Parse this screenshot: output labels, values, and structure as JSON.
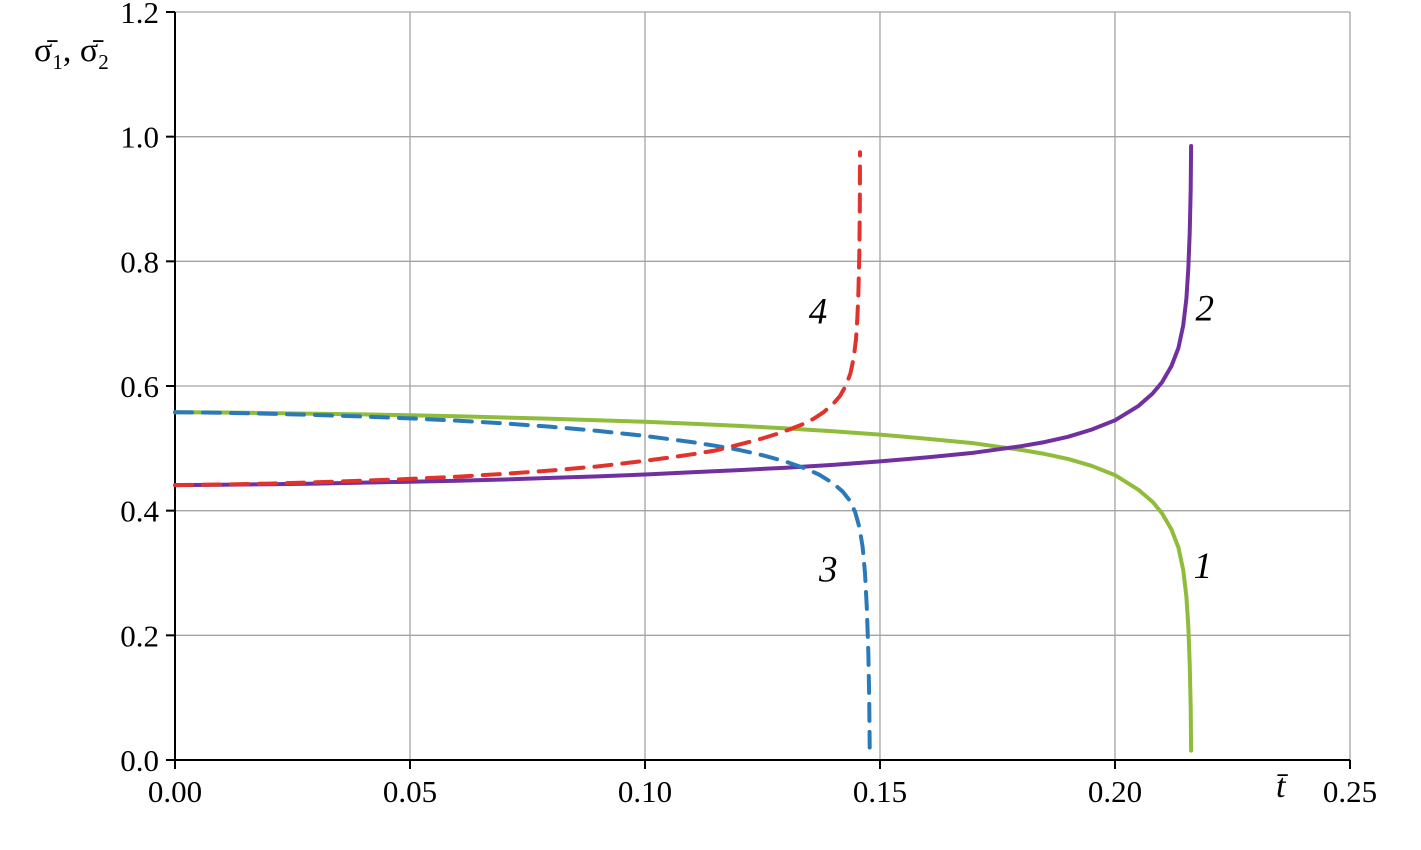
{
  "figure": {
    "background": "#ffffff"
  },
  "chart_data": {
    "type": "line",
    "title": "",
    "xlabel": "t̄",
    "ylabel": "σ̄₁, σ̄₂",
    "ylabel_parts": {
      "s1": "σ̄",
      "sub1": "1",
      "sep": ", ",
      "s2": "σ̄",
      "sub2": "2"
    },
    "xlim": [
      0,
      0.25
    ],
    "ylim": [
      0,
      1.2
    ],
    "xticks": [
      0,
      0.05,
      0.1,
      0.15,
      0.2,
      0.25
    ],
    "xtick_labels": [
      "0.00",
      "0.05",
      "0.10",
      "0.15",
      "0.20",
      "0.25"
    ],
    "yticks": [
      0,
      0.2,
      0.4,
      0.6,
      0.8,
      1.0,
      1.2
    ],
    "ytick_labels": [
      "0.0",
      "0.2",
      "0.4",
      "0.6",
      "0.8",
      "1.0",
      "1.2"
    ],
    "grid": true,
    "grid_color": "#a3a3a3",
    "axis_color": "#000000",
    "legend_position": "none",
    "series": [
      {
        "name": "1",
        "color": "#8fbc3b",
        "style": "solid",
        "dash": null,
        "width": 4,
        "points": [
          [
            0.0,
            0.558
          ],
          [
            0.01,
            0.5575
          ],
          [
            0.02,
            0.5565
          ],
          [
            0.03,
            0.5555
          ],
          [
            0.04,
            0.5545
          ],
          [
            0.05,
            0.553
          ],
          [
            0.06,
            0.5515
          ],
          [
            0.07,
            0.5495
          ],
          [
            0.08,
            0.5475
          ],
          [
            0.09,
            0.545
          ],
          [
            0.1,
            0.5425
          ],
          [
            0.11,
            0.5395
          ],
          [
            0.12,
            0.536
          ],
          [
            0.13,
            0.532
          ],
          [
            0.14,
            0.5275
          ],
          [
            0.15,
            0.522
          ],
          [
            0.16,
            0.5155
          ],
          [
            0.17,
            0.508
          ],
          [
            0.18,
            0.4975
          ],
          [
            0.185,
            0.491
          ],
          [
            0.19,
            0.483
          ],
          [
            0.195,
            0.472
          ],
          [
            0.2,
            0.457
          ],
          [
            0.205,
            0.4335
          ],
          [
            0.208,
            0.414
          ],
          [
            0.21,
            0.396
          ],
          [
            0.212,
            0.37
          ],
          [
            0.2135,
            0.341
          ],
          [
            0.2145,
            0.305
          ],
          [
            0.2152,
            0.262
          ],
          [
            0.2156,
            0.215
          ],
          [
            0.2159,
            0.155
          ],
          [
            0.2161,
            0.085
          ],
          [
            0.2162,
            0.015
          ]
        ]
      },
      {
        "name": "2",
        "color": "#7030a0",
        "style": "solid",
        "dash": null,
        "width": 4,
        "points": [
          [
            0.0,
            0.441
          ],
          [
            0.01,
            0.4415
          ],
          [
            0.02,
            0.4425
          ],
          [
            0.03,
            0.4435
          ],
          [
            0.04,
            0.445
          ],
          [
            0.05,
            0.4465
          ],
          [
            0.06,
            0.448
          ],
          [
            0.07,
            0.45
          ],
          [
            0.08,
            0.4525
          ],
          [
            0.09,
            0.455
          ],
          [
            0.1,
            0.458
          ],
          [
            0.11,
            0.4615
          ],
          [
            0.12,
            0.465
          ],
          [
            0.13,
            0.469
          ],
          [
            0.14,
            0.4735
          ],
          [
            0.15,
            0.479
          ],
          [
            0.16,
            0.4855
          ],
          [
            0.17,
            0.493
          ],
          [
            0.18,
            0.5035
          ],
          [
            0.185,
            0.51
          ],
          [
            0.19,
            0.5185
          ],
          [
            0.195,
            0.53
          ],
          [
            0.2,
            0.545
          ],
          [
            0.205,
            0.568
          ],
          [
            0.208,
            0.588
          ],
          [
            0.21,
            0.606
          ],
          [
            0.212,
            0.632
          ],
          [
            0.2135,
            0.661
          ],
          [
            0.2145,
            0.697
          ],
          [
            0.2152,
            0.74
          ],
          [
            0.2156,
            0.788
          ],
          [
            0.2159,
            0.845
          ],
          [
            0.2161,
            0.915
          ],
          [
            0.2162,
            0.985
          ]
        ]
      },
      {
        "name": "3",
        "color": "#2a7ab9",
        "style": "dashed",
        "dash": "17 11",
        "width": 4,
        "points": [
          [
            0.0,
            0.558
          ],
          [
            0.01,
            0.557
          ],
          [
            0.02,
            0.5555
          ],
          [
            0.03,
            0.5535
          ],
          [
            0.04,
            0.551
          ],
          [
            0.05,
            0.548
          ],
          [
            0.06,
            0.5445
          ],
          [
            0.07,
            0.54
          ],
          [
            0.08,
            0.5345
          ],
          [
            0.09,
            0.528
          ],
          [
            0.1,
            0.52
          ],
          [
            0.11,
            0.51
          ],
          [
            0.115,
            0.504
          ],
          [
            0.12,
            0.4975
          ],
          [
            0.125,
            0.489
          ],
          [
            0.13,
            0.4785
          ],
          [
            0.134,
            0.468
          ],
          [
            0.137,
            0.458
          ],
          [
            0.14,
            0.444
          ],
          [
            0.142,
            0.431
          ],
          [
            0.1435,
            0.417
          ],
          [
            0.1447,
            0.398
          ],
          [
            0.1456,
            0.374
          ],
          [
            0.1463,
            0.342
          ],
          [
            0.1468,
            0.3
          ],
          [
            0.1472,
            0.245
          ],
          [
            0.1475,
            0.175
          ],
          [
            0.1477,
            0.1
          ],
          [
            0.1478,
            0.02
          ]
        ]
      },
      {
        "name": "4",
        "color": "#e1322b",
        "style": "dashed",
        "dash": "17 11",
        "width": 4,
        "points": [
          [
            0.0,
            0.441
          ],
          [
            0.01,
            0.442
          ],
          [
            0.02,
            0.4435
          ],
          [
            0.03,
            0.4455
          ],
          [
            0.04,
            0.448
          ],
          [
            0.05,
            0.451
          ],
          [
            0.06,
            0.4545
          ],
          [
            0.07,
            0.459
          ],
          [
            0.08,
            0.4645
          ],
          [
            0.09,
            0.471
          ],
          [
            0.1,
            0.48
          ],
          [
            0.105,
            0.485
          ],
          [
            0.11,
            0.4905
          ],
          [
            0.115,
            0.4965
          ],
          [
            0.12,
            0.506
          ],
          [
            0.125,
            0.516
          ],
          [
            0.128,
            0.523
          ],
          [
            0.131,
            0.531
          ],
          [
            0.134,
            0.54
          ],
          [
            0.136,
            0.548
          ],
          [
            0.138,
            0.558
          ],
          [
            0.14,
            0.571
          ],
          [
            0.1415,
            0.584
          ],
          [
            0.1427,
            0.6
          ],
          [
            0.1437,
            0.62
          ],
          [
            0.1444,
            0.645
          ],
          [
            0.1449,
            0.675
          ],
          [
            0.1452,
            0.71
          ],
          [
            0.1454,
            0.75
          ],
          [
            0.1456,
            0.81
          ],
          [
            0.1457,
            0.88
          ],
          [
            0.14575,
            0.975
          ]
        ]
      }
    ],
    "annotations": [
      {
        "text": "4",
        "x": 0.1368,
        "y": 0.7
      },
      {
        "text": "2",
        "x": 0.2191,
        "y": 0.705
      },
      {
        "text": "3",
        "x": 0.139,
        "y": 0.286
      },
      {
        "text": "1",
        "x": 0.2187,
        "y": 0.292
      }
    ]
  }
}
